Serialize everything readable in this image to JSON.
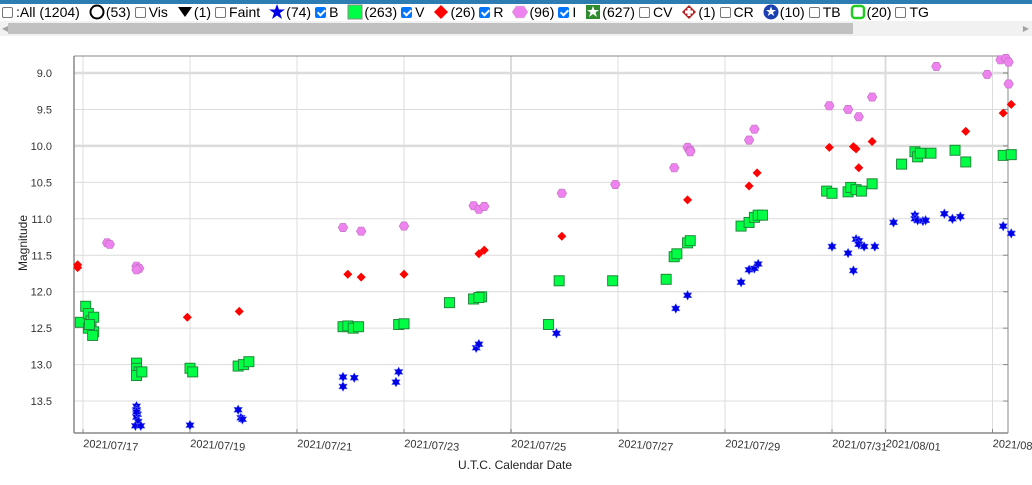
{
  "legend": {
    "items": [
      {
        "key": "all",
        "label": ":All (1204)",
        "checked": false,
        "symbol": "none"
      },
      {
        "key": "vis",
        "count": "(53)",
        "label": "Vis",
        "checked": false,
        "symbol": "open-circle"
      },
      {
        "key": "faint",
        "count": "(1)",
        "label": "Faint",
        "checked": false,
        "symbol": "down-triangle"
      },
      {
        "key": "b",
        "count": "(74)",
        "label": "B",
        "checked": true,
        "symbol": "blue-star",
        "color": "#0000e6"
      },
      {
        "key": "v",
        "count": "(263)",
        "label": "V",
        "checked": true,
        "symbol": "green-square",
        "color": "#00ff44"
      },
      {
        "key": "r",
        "count": "(26)",
        "label": "R",
        "checked": true,
        "symbol": "red-diamond",
        "color": "#ff0000"
      },
      {
        "key": "i",
        "count": "(96)",
        "label": "I",
        "checked": true,
        "symbol": "pink-hexagon",
        "color": "#ee82ee"
      },
      {
        "key": "cv",
        "count": "(627)",
        "label": "CV",
        "checked": false,
        "symbol": "green-star-box",
        "color": "#2e8b2e"
      },
      {
        "key": "cr",
        "count": "(1)",
        "label": "CR",
        "checked": false,
        "symbol": "dark-red-cross-diamond",
        "color": "#b22222"
      },
      {
        "key": "tb",
        "count": "(10)",
        "label": "TB",
        "checked": false,
        "symbol": "navy-star-circle",
        "color": "#1a3fb0"
      },
      {
        "key": "tg",
        "count": "(20)",
        "label": "TG",
        "checked": false,
        "symbol": "green-open-rounded-square",
        "color": "#22cc22"
      }
    ]
  },
  "chart_data": {
    "type": "scatter",
    "title": "",
    "xlabel": "U.T.C. Calendar Date",
    "ylabel": "Magnitude",
    "y_inverted": true,
    "ylim": [
      13.9,
      8.8
    ],
    "yticks": [
      "9.0",
      "9.5",
      "10.0",
      "10.5",
      "11.0",
      "11.5",
      "12.0",
      "12.5",
      "13.0",
      "13.5"
    ],
    "xticks": [
      "2021/07/17",
      "2021/07/19",
      "2021/07/21",
      "2021/07/23",
      "2021/07/25",
      "2021/07/27",
      "2021/07/29",
      "2021/07/31",
      "2021/08/01",
      "2021/08"
    ],
    "x_unit": "days since 2021/07/17 00:00 UT",
    "xlim": [
      -0.17,
      17.3
    ],
    "grid": true,
    "legend_position": "top",
    "series": [
      {
        "name": "B",
        "color": "#0000e6",
        "marker": "star",
        "points": [
          [
            1.0,
            13.57
          ],
          [
            1.0,
            13.62
          ],
          [
            1.02,
            13.68
          ],
          [
            1.0,
            13.72
          ],
          [
            1.03,
            13.78
          ],
          [
            0.98,
            13.84
          ],
          [
            1.08,
            13.84
          ],
          [
            1.0,
            13.65
          ],
          [
            2.0,
            13.83
          ],
          [
            2.9,
            13.62
          ],
          [
            2.95,
            13.73
          ],
          [
            2.98,
            13.75
          ],
          [
            4.86,
            13.17
          ],
          [
            4.86,
            13.3
          ],
          [
            5.07,
            13.18
          ],
          [
            5.9,
            13.1
          ],
          [
            5.85,
            13.24
          ],
          [
            7.35,
            12.77
          ],
          [
            7.4,
            12.72
          ],
          [
            8.85,
            12.57
          ],
          [
            11.08,
            12.23
          ],
          [
            11.3,
            12.05
          ],
          [
            12.3,
            11.87
          ],
          [
            12.45,
            11.7
          ],
          [
            12.55,
            11.68
          ],
          [
            12.62,
            11.62
          ],
          [
            14.0,
            11.38
          ],
          [
            14.3,
            11.47
          ],
          [
            14.4,
            11.71
          ],
          [
            14.45,
            11.28
          ],
          [
            14.5,
            11.3
          ],
          [
            14.5,
            11.35
          ],
          [
            14.6,
            11.38
          ],
          [
            14.8,
            11.38
          ],
          [
            15.15,
            11.05
          ],
          [
            15.55,
            10.95
          ],
          [
            15.55,
            11.0
          ],
          [
            15.6,
            11.02
          ],
          [
            15.7,
            11.03
          ],
          [
            15.75,
            11.02
          ],
          [
            16.1,
            10.93
          ],
          [
            16.25,
            11.0
          ],
          [
            16.4,
            10.97
          ],
          [
            17.2,
            11.1
          ],
          [
            17.35,
            11.2
          ]
        ]
      },
      {
        "name": "V",
        "color": "#00ff44",
        "marker": "square",
        "points": [
          [
            -0.05,
            12.42
          ],
          [
            0.05,
            12.2
          ],
          [
            0.1,
            12.3
          ],
          [
            0.15,
            12.4
          ],
          [
            0.1,
            12.5
          ],
          [
            0.2,
            12.55
          ],
          [
            0.2,
            12.35
          ],
          [
            0.18,
            12.6
          ],
          [
            0.12,
            12.45
          ],
          [
            1.0,
            12.98
          ],
          [
            1.0,
            13.05
          ],
          [
            1.05,
            13.1
          ],
          [
            1.0,
            13.15
          ],
          [
            1.1,
            13.1
          ],
          [
            2.0,
            13.05
          ],
          [
            2.05,
            13.1
          ],
          [
            2.9,
            13.02
          ],
          [
            3.0,
            13.0
          ],
          [
            3.1,
            12.96
          ],
          [
            4.86,
            12.48
          ],
          [
            4.95,
            12.47
          ],
          [
            5.05,
            12.5
          ],
          [
            5.15,
            12.48
          ],
          [
            5.9,
            12.45
          ],
          [
            6.0,
            12.44
          ],
          [
            6.85,
            12.15
          ],
          [
            7.3,
            12.1
          ],
          [
            7.45,
            12.07
          ],
          [
            7.4,
            12.08
          ],
          [
            8.7,
            12.45
          ],
          [
            8.9,
            11.85
          ],
          [
            9.9,
            11.85
          ],
          [
            10.9,
            11.83
          ],
          [
            11.05,
            11.52
          ],
          [
            11.1,
            11.48
          ],
          [
            11.3,
            11.33
          ],
          [
            11.35,
            11.3
          ],
          [
            12.3,
            11.1
          ],
          [
            12.45,
            11.05
          ],
          [
            12.55,
            10.98
          ],
          [
            12.62,
            10.95
          ],
          [
            12.7,
            10.95
          ],
          [
            13.9,
            10.62
          ],
          [
            14.0,
            10.65
          ],
          [
            14.3,
            10.63
          ],
          [
            14.35,
            10.57
          ],
          [
            14.45,
            10.6
          ],
          [
            14.55,
            10.62
          ],
          [
            14.75,
            10.52
          ],
          [
            15.3,
            10.25
          ],
          [
            15.55,
            10.08
          ],
          [
            15.6,
            10.15
          ],
          [
            15.65,
            10.1
          ],
          [
            15.85,
            10.1
          ],
          [
            16.3,
            10.06
          ],
          [
            16.5,
            10.22
          ],
          [
            17.2,
            10.13
          ],
          [
            17.35,
            10.12
          ]
        ]
      },
      {
        "name": "R",
        "color": "#ff0000",
        "marker": "diamond",
        "points": [
          [
            -0.1,
            11.63
          ],
          [
            -0.1,
            11.67
          ],
          [
            1.95,
            12.35
          ],
          [
            2.92,
            12.27
          ],
          [
            4.95,
            11.76
          ],
          [
            5.2,
            11.8
          ],
          [
            6.0,
            11.76
          ],
          [
            7.4,
            11.48
          ],
          [
            7.5,
            11.43
          ],
          [
            8.95,
            11.24
          ],
          [
            11.3,
            10.74
          ],
          [
            12.45,
            10.55
          ],
          [
            12.6,
            10.37
          ],
          [
            13.95,
            10.02
          ],
          [
            14.4,
            10.01
          ],
          [
            14.45,
            10.04
          ],
          [
            14.5,
            10.3
          ],
          [
            14.75,
            9.94
          ],
          [
            16.5,
            9.8
          ],
          [
            17.2,
            9.55
          ],
          [
            17.35,
            9.43
          ]
        ]
      },
      {
        "name": "I",
        "color": "#ee82ee",
        "marker": "hexagon",
        "points": [
          [
            0.45,
            11.33
          ],
          [
            0.5,
            11.35
          ],
          [
            1.0,
            11.65
          ],
          [
            1.05,
            11.68
          ],
          [
            1.0,
            11.7
          ],
          [
            4.86,
            11.12
          ],
          [
            5.2,
            11.17
          ],
          [
            6.0,
            11.1
          ],
          [
            7.3,
            10.82
          ],
          [
            7.4,
            10.87
          ],
          [
            7.5,
            10.83
          ],
          [
            8.95,
            10.65
          ],
          [
            9.95,
            10.53
          ],
          [
            11.05,
            10.3
          ],
          [
            11.3,
            10.02
          ],
          [
            11.35,
            10.06
          ],
          [
            11.35,
            10.08
          ],
          [
            12.45,
            9.92
          ],
          [
            12.55,
            9.77
          ],
          [
            13.95,
            9.45
          ],
          [
            14.3,
            9.5
          ],
          [
            14.5,
            9.6
          ],
          [
            14.75,
            9.33
          ],
          [
            15.95,
            8.91
          ],
          [
            16.9,
            9.02
          ],
          [
            17.3,
            9.15
          ],
          [
            17.15,
            8.82
          ],
          [
            17.25,
            8.8
          ],
          [
            17.3,
            8.85
          ],
          [
            17.4,
            8.77
          ]
        ]
      }
    ]
  }
}
